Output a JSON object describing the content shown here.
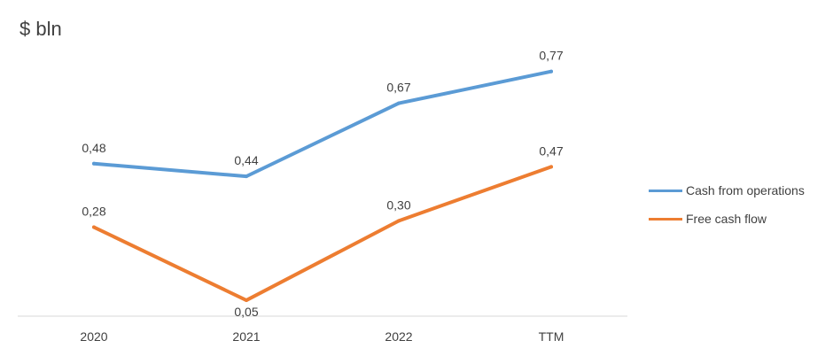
{
  "chart_data": {
    "type": "line",
    "unit_label": "$ bln",
    "categories": [
      "2020",
      "2021",
      "2022",
      "TTM"
    ],
    "series": [
      {
        "name": "Cash from operations",
        "values": [
          0.48,
          0.44,
          0.67,
          0.77
        ],
        "labels": [
          "0,48",
          "0,44",
          "0,67",
          "0,77"
        ],
        "color": "#5b9bd5"
      },
      {
        "name": "Free cash flow",
        "values": [
          0.28,
          0.05,
          0.3,
          0.47
        ],
        "labels": [
          "0,28",
          "0,05",
          "0,30",
          "0,47"
        ],
        "color": "#ed7d31"
      }
    ],
    "ylim": [
      0.0,
      0.85
    ],
    "grid": false,
    "legend_position": "right"
  }
}
